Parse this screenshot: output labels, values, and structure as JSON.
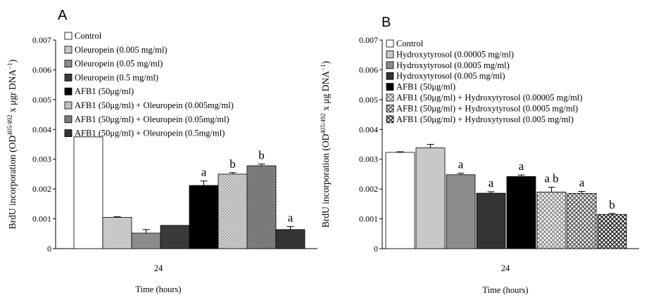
{
  "patterns": {
    "p_solid_white": {
      "kind": "solid",
      "fill": "#ffffff"
    },
    "p_solid_lightgray": {
      "kind": "solid",
      "fill": "#c8c8c8"
    },
    "p_solid_gray": {
      "kind": "solid",
      "fill": "#8c8c8c"
    },
    "p_solid_dark": {
      "kind": "solid",
      "fill": "#3a3a3a"
    },
    "p_solid_darker": {
      "kind": "solid",
      "fill": "#333333"
    },
    "p_solid_black": {
      "kind": "solid",
      "fill": "#000000"
    },
    "p_dots_light": {
      "kind": "dots",
      "bg": "#d6d6d6",
      "fg": "#6e6e6e"
    },
    "p_dots_mid": {
      "kind": "dots",
      "bg": "#8a8a8a",
      "fg": "#3c3c3c"
    },
    "p_dots_dark": {
      "kind": "dots",
      "bg": "#3c3c3c",
      "fg": "#151515"
    },
    "p_cross_light": {
      "kind": "cross",
      "bg": "#ffffff",
      "fg": "#8a8a8a"
    },
    "p_cross_mid": {
      "kind": "cross",
      "bg": "#ffffff",
      "fg": "#555555"
    },
    "p_cross_dark": {
      "kind": "cross",
      "bg": "#ffffff",
      "fg": "#1e1e1e"
    }
  },
  "chart_data": [
    {
      "type": "bar",
      "panel_label": "A",
      "title": "",
      "xlabel": "Time (hours)",
      "ylabel": "BrdU incorporation (OD405/492 x μgr DNA-1)",
      "ylim": [
        0,
        0.007
      ],
      "yticks": [
        "0",
        "0.001",
        "0.002",
        "0.003",
        "0.004",
        "0.005",
        "0.006",
        "0.007"
      ],
      "categories": [
        "24"
      ],
      "grid": false,
      "legend_position": "top-left",
      "series": [
        {
          "name": "Control",
          "values": [
            0.00375
          ],
          "error": [
            0.0
          ],
          "sig": "",
          "pattern": "p_solid_white"
        },
        {
          "name": "Oleuropein (0.005 mg/ml)",
          "values": [
            0.00105
          ],
          "error": [
            2e-05
          ],
          "sig": "",
          "pattern": "p_solid_lightgray"
        },
        {
          "name": "Oleuropein (0.05 mg/ml)",
          "values": [
            0.00052
          ],
          "error": [
            0.00012
          ],
          "sig": "",
          "pattern": "p_solid_gray"
        },
        {
          "name": "Oleuropein (0.5 mg/ml)",
          "values": [
            0.00078
          ],
          "error": [
            0.0
          ],
          "sig": "",
          "pattern": "p_solid_dark"
        },
        {
          "name": "AFB1 (50μg/ml)",
          "values": [
            0.00212
          ],
          "error": [
            0.00015
          ],
          "sig": "a",
          "pattern": "p_solid_black"
        },
        {
          "name": "AFB1 (50μg/ml) + Oleuropein (0.005mg/ml)",
          "values": [
            0.0025
          ],
          "error": [
            5e-05
          ],
          "sig": "b",
          "pattern": "p_dots_light"
        },
        {
          "name": "AFB1 (50μg/ml) + Oleuropein (0.05mg/ml)",
          "values": [
            0.00278
          ],
          "error": [
            6e-05
          ],
          "sig": "b",
          "pattern": "p_dots_mid"
        },
        {
          "name": "AFB1 (50μg/ml) + Oleuropein (0.5mg/ml)",
          "values": [
            0.00064
          ],
          "error": [
            0.0001
          ],
          "sig": "a",
          "pattern": "p_dots_dark"
        }
      ]
    },
    {
      "type": "bar",
      "panel_label": "B",
      "title": "",
      "xlabel": "Time (hours)",
      "ylabel": "BrdU incorporation (OD405/492 x μg DNA-1)",
      "ylim": [
        0,
        0.007
      ],
      "yticks": [
        "0",
        "0.001",
        "0.002",
        "0.003",
        "0.004",
        "0.005",
        "0.006",
        "0.007"
      ],
      "categories": [
        "24"
      ],
      "grid": false,
      "legend_position": "top-left",
      "series": [
        {
          "name": "Control",
          "values": [
            0.00323
          ],
          "error": [
            2e-05
          ],
          "sig": "",
          "pattern": "p_solid_white"
        },
        {
          "name": "Hydroxytyrosol (0.00005 mg/ml)",
          "values": [
            0.00338
          ],
          "error": [
            0.00012
          ],
          "sig": "",
          "pattern": "p_solid_lightgray"
        },
        {
          "name": "Hydroxytyrosol (0.0005 mg/ml)",
          "values": [
            0.00248
          ],
          "error": [
            5e-05
          ],
          "sig": "a",
          "pattern": "p_solid_gray"
        },
        {
          "name": "Hydroxytyrosol (0.005 mg/ml)",
          "values": [
            0.00186
          ],
          "error": [
            5e-05
          ],
          "sig": "a",
          "pattern": "p_solid_darker"
        },
        {
          "name": "AFB1 (50μg/ml)",
          "values": [
            0.00242
          ],
          "error": [
            5e-05
          ],
          "sig": "a",
          "pattern": "p_solid_black"
        },
        {
          "name": "AFB1 (50μg/ml) + Hydroxytyrosol (0.00005 mg/ml)",
          "values": [
            0.0019
          ],
          "error": [
            0.00016
          ],
          "sig": "a b",
          "pattern": "p_cross_light"
        },
        {
          "name": "AFB1 (50μg/ml) + Hydroxytyrosol (0.0005 mg/ml)",
          "values": [
            0.00185
          ],
          "error": [
            7e-05
          ],
          "sig": "a",
          "pattern": "p_cross_mid"
        },
        {
          "name": "AFB1 (50μg/ml) + Hydroxytyrosol (0.005 mg/ml)",
          "values": [
            0.00115
          ],
          "error": [
            3e-05
          ],
          "sig": "b",
          "pattern": "p_cross_dark"
        }
      ]
    }
  ]
}
